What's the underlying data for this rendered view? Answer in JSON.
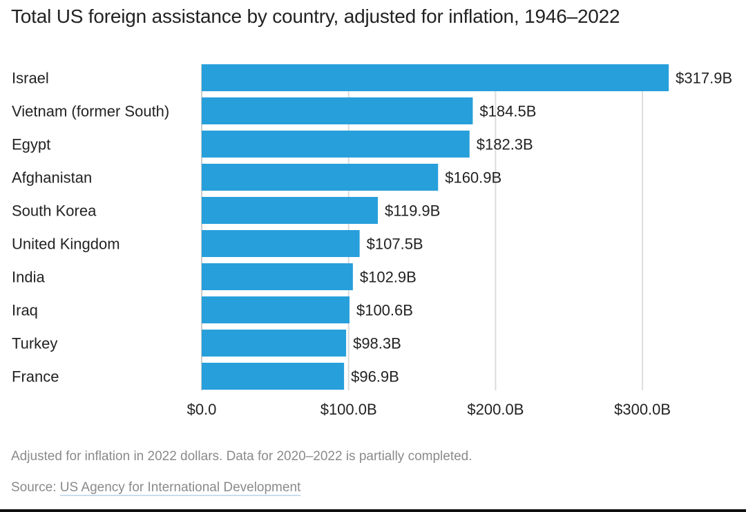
{
  "title": "Total US foreign assistance by country, adjusted for inflation, 1946–2022",
  "note": "Adjusted for inflation in 2022 dollars. Data for 2020–2022 is partially completed.",
  "source_prefix": "Source: ",
  "source_link": "US Agency for International Development",
  "colors": {
    "bar": "#279fdb",
    "grid": "#dcdcdc",
    "axis": "#cccccc"
  },
  "chart_data": {
    "type": "bar",
    "orientation": "horizontal",
    "title": "Total US foreign assistance by country, adjusted for inflation, 1946–2022",
    "categories": [
      "Israel",
      "Vietnam (former South)",
      "Egypt",
      "Afghanistan",
      "South Korea",
      "United Kingdom",
      "India",
      "Iraq",
      "Turkey",
      "France"
    ],
    "values": [
      317.9,
      184.5,
      182.3,
      160.9,
      119.9,
      107.5,
      102.9,
      100.6,
      98.3,
      96.9
    ],
    "value_labels": [
      "$317.9B",
      "$184.5B",
      "$182.3B",
      "$160.9B",
      "$119.9B",
      "$107.5B",
      "$102.9B",
      "$100.6B",
      "$98.3B",
      "$96.9B"
    ],
    "xlim": [
      0,
      300
    ],
    "xticks": [
      0,
      100,
      200,
      300
    ],
    "xtick_labels": [
      "$0.0",
      "$100.0B",
      "$200.0B",
      "$300.0B"
    ],
    "grid": true,
    "xlabel": "",
    "ylabel": ""
  }
}
